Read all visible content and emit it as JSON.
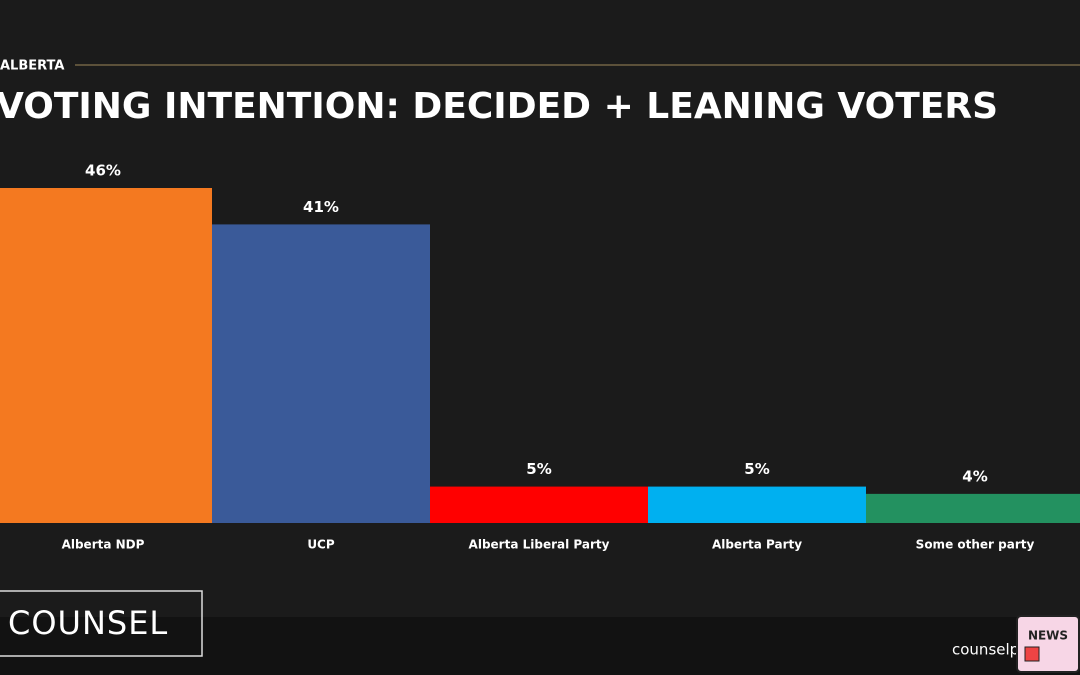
{
  "chart_data": {
    "type": "bar",
    "region": "ALBERTA",
    "title": "VOTING INTENTION: DECIDED + LEANING VOTERS",
    "categories": [
      "Alberta NDP",
      "UCP",
      "Alberta Liberal Party",
      "Alberta Party",
      "Some other party"
    ],
    "values": [
      46,
      41,
      5,
      5,
      4
    ],
    "value_labels": [
      "46%",
      "41%",
      "5%",
      "5%",
      "4%"
    ],
    "colors": [
      "#f47920",
      "#3a5a99",
      "#ff0000",
      "#00b0f0",
      "#239160"
    ]
  },
  "footer": {
    "brand": "COUNSEL",
    "website": "counselp",
    "badge": "NEWS"
  }
}
